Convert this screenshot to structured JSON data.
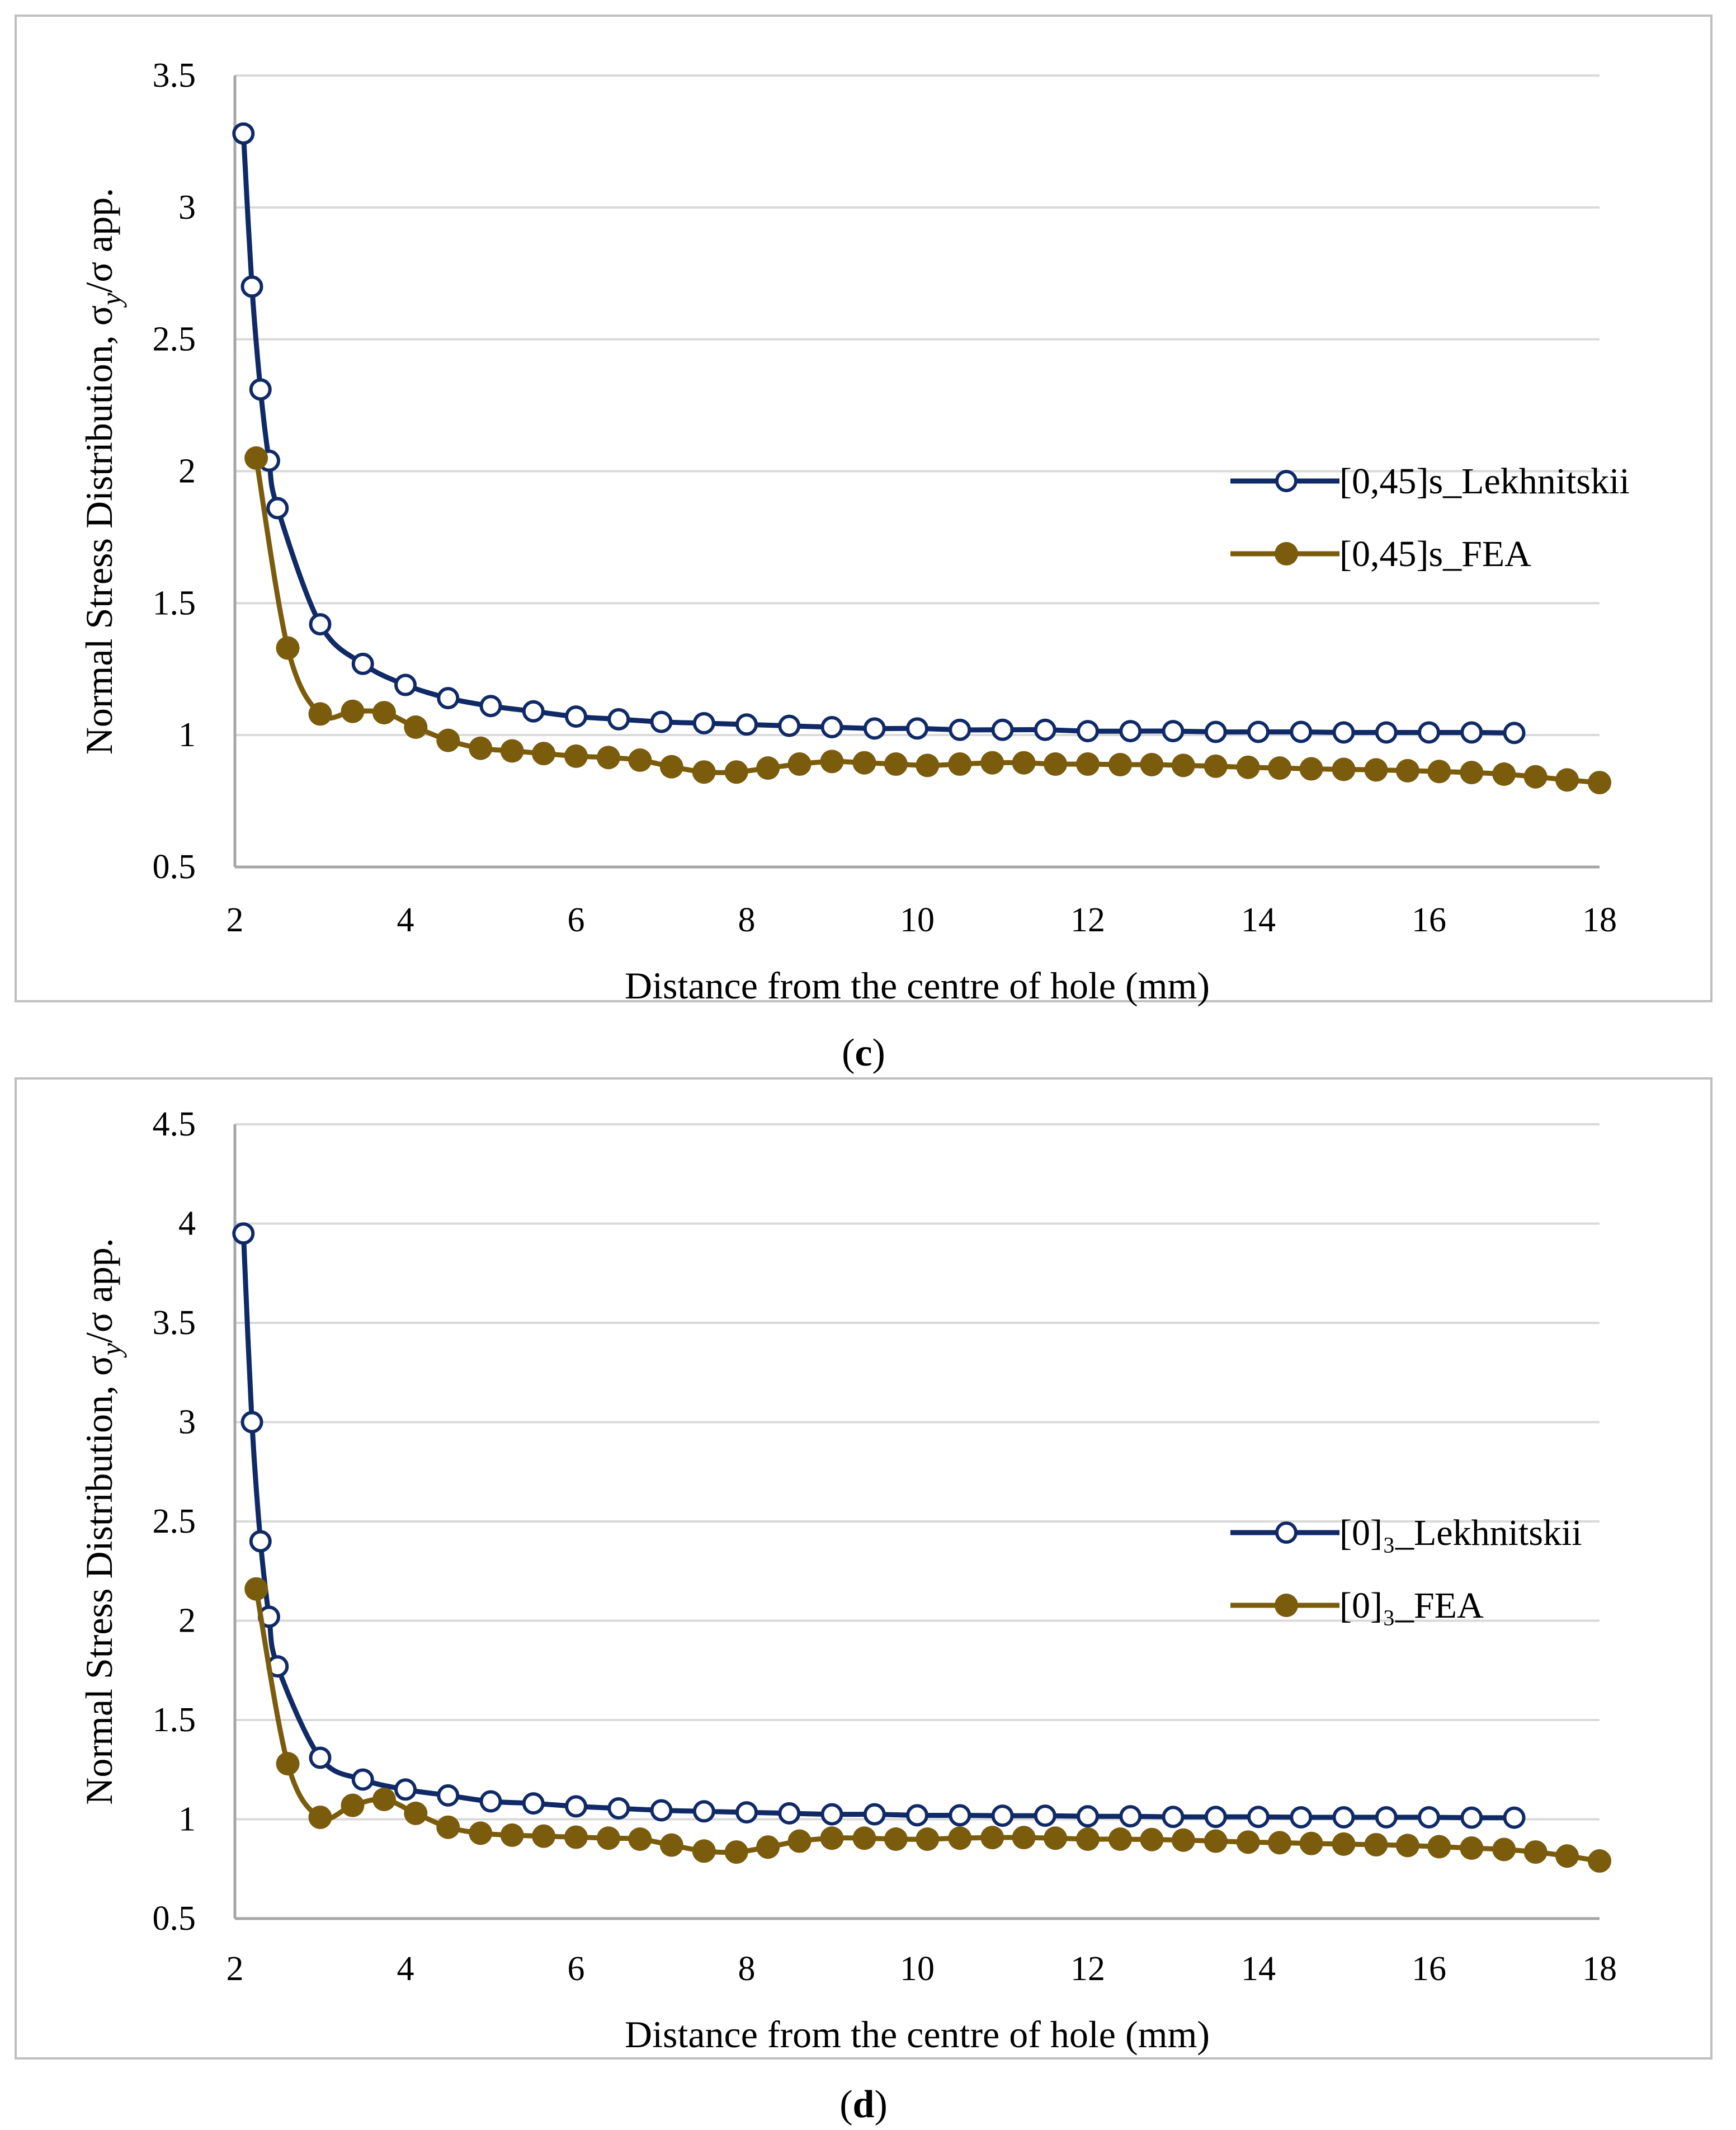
{
  "colors": {
    "lekhnitskii": "#0f2a66",
    "fea": "#7a5c0c",
    "grid": "#d9d9d9",
    "frame": "#bfbfbf",
    "axis": "#a6a6a6"
  },
  "chart_data": [
    {
      "type": "line",
      "caption": {
        "open": "(",
        "letter": "c",
        "close": ")"
      },
      "xlabel": "Distance from the centre of hole (mm)",
      "ylabel": {
        "main": "Normal Stress Distribution, σ",
        "sub": "y",
        "tail": "/σ app."
      },
      "xlim": [
        2,
        18
      ],
      "ylim": [
        0.5,
        3.5
      ],
      "xticks": [
        2,
        4,
        6,
        8,
        10,
        12,
        14,
        16,
        18
      ],
      "yticks": [
        0.5,
        1,
        1.5,
        2,
        2.5,
        3,
        3.5
      ],
      "ytick_labels": [
        "0.5",
        "1",
        "1.5",
        "2",
        "2.5",
        "3",
        "3.5"
      ],
      "legend_position": "right",
      "series": [
        {
          "name": "[0,45]s_Lekhnitskii",
          "marker": "open-circle",
          "color_key": "lekhnitskii",
          "x": [
            2.1,
            2.2,
            2.3,
            2.4,
            2.5,
            3.0,
            3.5,
            4.0,
            4.5,
            5.0,
            5.5,
            6.0,
            6.5,
            7.0,
            7.5,
            8.0,
            8.5,
            9.0,
            9.5,
            10.0,
            10.5,
            11.0,
            11.5,
            12.0,
            12.5,
            13.0,
            13.5,
            14.0,
            14.5,
            15.0,
            15.5,
            16.0,
            16.5,
            17.0
          ],
          "y": [
            3.28,
            2.7,
            2.31,
            2.04,
            1.86,
            1.42,
            1.27,
            1.19,
            1.14,
            1.11,
            1.09,
            1.07,
            1.06,
            1.05,
            1.045,
            1.04,
            1.035,
            1.03,
            1.025,
            1.025,
            1.02,
            1.02,
            1.02,
            1.015,
            1.015,
            1.015,
            1.012,
            1.012,
            1.012,
            1.01,
            1.01,
            1.01,
            1.01,
            1.008
          ]
        },
        {
          "name": "[0,45]s_FEA",
          "marker": "filled-circle",
          "color_key": "fea",
          "x": [
            2.25,
            2.62,
            3.0,
            3.38,
            3.75,
            4.12,
            4.5,
            4.88,
            5.25,
            5.62,
            6.0,
            6.38,
            6.75,
            7.12,
            7.5,
            7.88,
            8.25,
            8.62,
            9.0,
            9.38,
            9.75,
            10.12,
            10.5,
            10.88,
            11.25,
            11.62,
            12.0,
            12.38,
            12.75,
            13.12,
            13.5,
            13.88,
            14.25,
            14.62,
            15.0,
            15.38,
            15.75,
            16.12,
            16.5,
            16.88,
            17.25,
            17.62,
            18.0
          ],
          "y": [
            2.05,
            1.33,
            1.08,
            1.09,
            1.085,
            1.03,
            0.98,
            0.95,
            0.94,
            0.93,
            0.92,
            0.915,
            0.905,
            0.88,
            0.86,
            0.86,
            0.875,
            0.89,
            0.9,
            0.895,
            0.89,
            0.885,
            0.89,
            0.895,
            0.895,
            0.89,
            0.89,
            0.888,
            0.888,
            0.885,
            0.882,
            0.878,
            0.875,
            0.872,
            0.87,
            0.868,
            0.865,
            0.862,
            0.858,
            0.852,
            0.842,
            0.83,
            0.82
          ]
        }
      ]
    },
    {
      "type": "line",
      "caption": {
        "open": "(",
        "letter": "d",
        "close": ")"
      },
      "xlabel": "Distance from the centre of hole (mm)",
      "ylabel": {
        "main": "Normal Stress Distribution, σ",
        "sub": "y",
        "tail": "/σ app."
      },
      "xlim": [
        2,
        18
      ],
      "ylim": [
        0.5,
        4.5
      ],
      "xticks": [
        2,
        4,
        6,
        8,
        10,
        12,
        14,
        16,
        18
      ],
      "yticks": [
        0.5,
        1,
        1.5,
        2,
        2.5,
        3,
        3.5,
        4,
        4.5
      ],
      "ytick_labels": [
        "0.5",
        "1",
        "1.5",
        "2",
        "2.5",
        "3",
        "3.5",
        "4",
        "4.5"
      ],
      "legend_position": "right",
      "series": [
        {
          "name": "[0]₃_Lekhnitskii",
          "marker": "open-circle",
          "color_key": "lekhnitskii",
          "x": [
            2.1,
            2.2,
            2.3,
            2.4,
            2.5,
            3.0,
            3.5,
            4.0,
            4.5,
            5.0,
            5.5,
            6.0,
            6.5,
            7.0,
            7.5,
            8.0,
            8.5,
            9.0,
            9.5,
            10.0,
            10.5,
            11.0,
            11.5,
            12.0,
            12.5,
            13.0,
            13.5,
            14.0,
            14.5,
            15.0,
            15.5,
            16.0,
            16.5,
            17.0
          ],
          "y": [
            3.95,
            3.0,
            2.4,
            2.02,
            1.77,
            1.31,
            1.2,
            1.15,
            1.12,
            1.09,
            1.08,
            1.065,
            1.055,
            1.045,
            1.04,
            1.035,
            1.03,
            1.025,
            1.025,
            1.02,
            1.02,
            1.018,
            1.018,
            1.015,
            1.015,
            1.012,
            1.012,
            1.012,
            1.01,
            1.01,
            1.01,
            1.01,
            1.008,
            1.008
          ]
        },
        {
          "name": "[0]₃_FEA",
          "marker": "filled-circle",
          "color_key": "fea",
          "x": [
            2.25,
            2.62,
            3.0,
            3.38,
            3.75,
            4.12,
            4.5,
            4.88,
            5.25,
            5.62,
            6.0,
            6.38,
            6.75,
            7.12,
            7.5,
            7.88,
            8.25,
            8.62,
            9.0,
            9.38,
            9.75,
            10.12,
            10.5,
            10.88,
            11.25,
            11.62,
            12.0,
            12.38,
            12.75,
            13.12,
            13.5,
            13.88,
            14.25,
            14.62,
            15.0,
            15.38,
            15.75,
            16.12,
            16.5,
            16.88,
            17.25,
            17.62,
            18.0
          ],
          "y": [
            2.16,
            1.28,
            1.01,
            1.07,
            1.1,
            1.03,
            0.96,
            0.93,
            0.92,
            0.915,
            0.91,
            0.905,
            0.9,
            0.87,
            0.84,
            0.835,
            0.86,
            0.89,
            0.905,
            0.905,
            0.9,
            0.9,
            0.905,
            0.908,
            0.908,
            0.905,
            0.9,
            0.9,
            0.898,
            0.895,
            0.89,
            0.885,
            0.882,
            0.878,
            0.875,
            0.872,
            0.868,
            0.862,
            0.855,
            0.848,
            0.835,
            0.815,
            0.79
          ]
        }
      ]
    }
  ]
}
